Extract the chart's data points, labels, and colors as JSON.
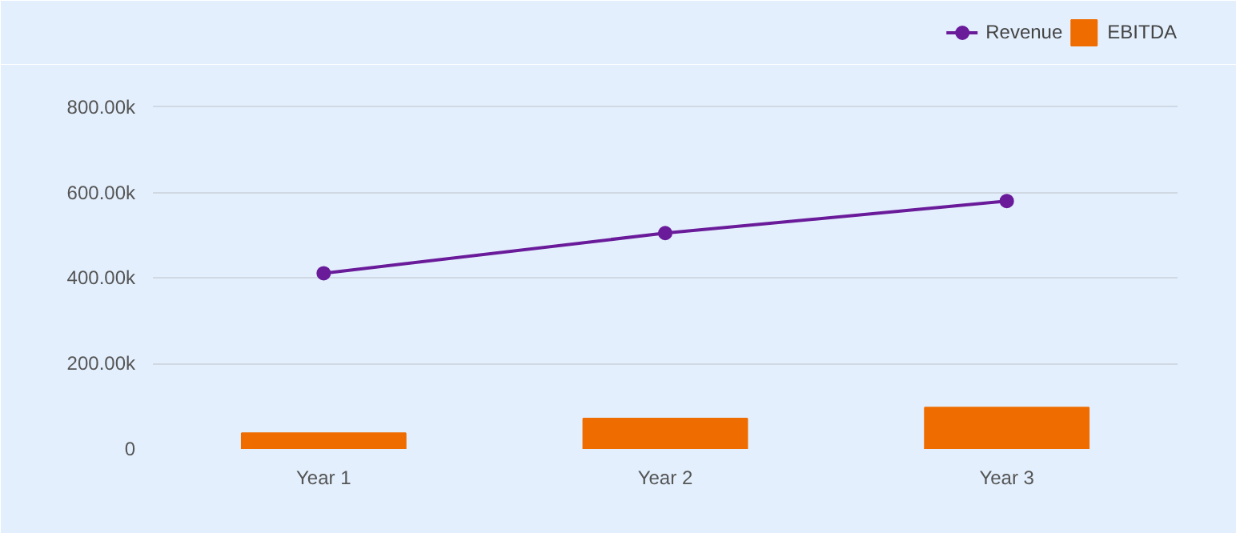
{
  "chart_data": {
    "type": "bar",
    "categories": [
      "Year 1",
      "Year 2",
      "Year 3"
    ],
    "series": [
      {
        "name": "Revenue",
        "type": "line",
        "color": "#6a1b9a",
        "values": [
          411000,
          505000,
          580000
        ]
      },
      {
        "name": "EBITDA",
        "color": "#ef6c00",
        "values": [
          37000,
          71000,
          97000
        ]
      }
    ],
    "ylim": [
      0,
      820000
    ],
    "yticks": [
      0,
      {
        "value": 200000,
        "label": "200.00k"
      },
      {
        "value": 400000,
        "label": "400.00k"
      },
      {
        "value": 600000,
        "label": "600.00k"
      },
      {
        "value": 800000,
        "label": "800.00k"
      }
    ],
    "grid": "y",
    "legend": "top right",
    "marker": "circle"
  }
}
